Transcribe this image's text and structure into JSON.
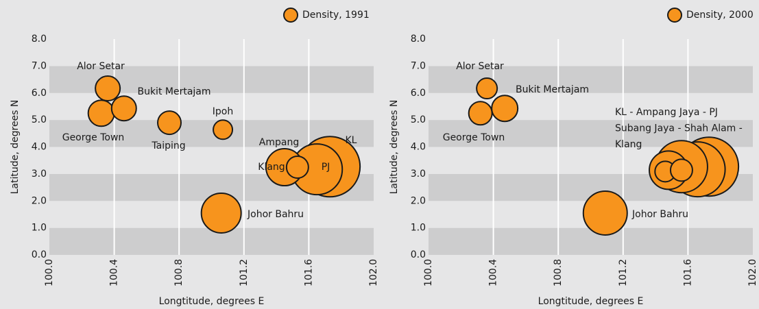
{
  "chart_data": [
    {
      "type": "scatter",
      "legend": "Density, 1991",
      "color": "#f7941d",
      "xlabel": "Longtitude, degrees E",
      "ylabel": "Latitude, degrees N",
      "xlim": [
        100.0,
        102.0
      ],
      "ylim": [
        0,
        8
      ],
      "xticks": [
        {
          "value": 100,
          "label": "100.0"
        },
        100.4,
        100.8,
        101.2,
        101.6,
        {
          "value": 102,
          "label": "102.0"
        }
      ],
      "yticks": [
        {
          "value": 0,
          "label": "0.0"
        },
        {
          "value": 1,
          "label": "1.0"
        },
        {
          "value": 2,
          "label": "2.0"
        },
        {
          "value": 3,
          "label": "3.0"
        },
        {
          "value": 4,
          "label": "4.0"
        },
        {
          "value": 5,
          "label": "5.0"
        },
        {
          "value": 6,
          "label": "6.0"
        },
        {
          "value": 7,
          "label": "7.0"
        },
        {
          "value": 8,
          "label": "8.0"
        }
      ],
      "labels": [
        "Alor Setar",
        "George Town",
        "Bukit Mertajam",
        "Taiping",
        "Ipoh",
        "Johor Bahru",
        "KL",
        "PJ",
        "Ampang",
        "Klang"
      ],
      "x": [
        100.36,
        100.32,
        100.46,
        100.74,
        101.07,
        101.06,
        101.73,
        101.65,
        101.45,
        101.53
      ],
      "y": [
        6.17,
        5.25,
        5.43,
        4.9,
        4.64,
        1.55,
        3.27,
        3.17,
        3.25,
        3.25
      ],
      "sizes": [
        18,
        19,
        18,
        17,
        14,
        29,
        44,
        37,
        27,
        16
      ]
    },
    {
      "type": "scatter",
      "legend": "Density, 2000",
      "color": "#f7941d",
      "xlabel": "Longtitude, degrees E",
      "ylabel": "Latitude, degrees N",
      "xlim": [
        100.0,
        102.0
      ],
      "ylim": [
        0,
        8
      ],
      "xticks": [
        {
          "value": 100,
          "label": "100.0"
        },
        100.4,
        100.8,
        101.2,
        101.6,
        {
          "value": 102,
          "label": "102.0"
        }
      ],
      "yticks": [
        {
          "value": 0,
          "label": "0.0"
        },
        {
          "value": 1,
          "label": "1.0"
        },
        {
          "value": 2,
          "label": "2.0"
        },
        {
          "value": 3,
          "label": "3.0"
        },
        {
          "value": 4,
          "label": "4.0"
        },
        {
          "value": 5,
          "label": "5.0"
        },
        {
          "value": 6,
          "label": "6.0"
        },
        {
          "value": 7,
          "label": "7.0"
        },
        {
          "value": 8,
          "label": "8.0"
        }
      ],
      "labels": [
        "Alor Setar",
        "George Town",
        "Bukit Mertajam",
        "Johor Bahru",
        null,
        null,
        null,
        null,
        null,
        null
      ],
      "x": [
        100.36,
        100.32,
        100.47,
        101.09,
        101.73,
        101.66,
        101.56,
        101.48,
        101.46,
        101.56
      ],
      "y": [
        6.17,
        5.25,
        5.43,
        1.55,
        3.27,
        3.17,
        3.27,
        3.14,
        3.09,
        3.14
      ],
      "sizes": [
        15,
        17,
        19,
        32,
        43,
        40,
        38,
        28,
        15,
        16
      ],
      "annotation": [
        "KL - Ampang Jaya - PJ",
        "Subang Jaya - Shah Alam -",
        "Klang"
      ]
    }
  ]
}
